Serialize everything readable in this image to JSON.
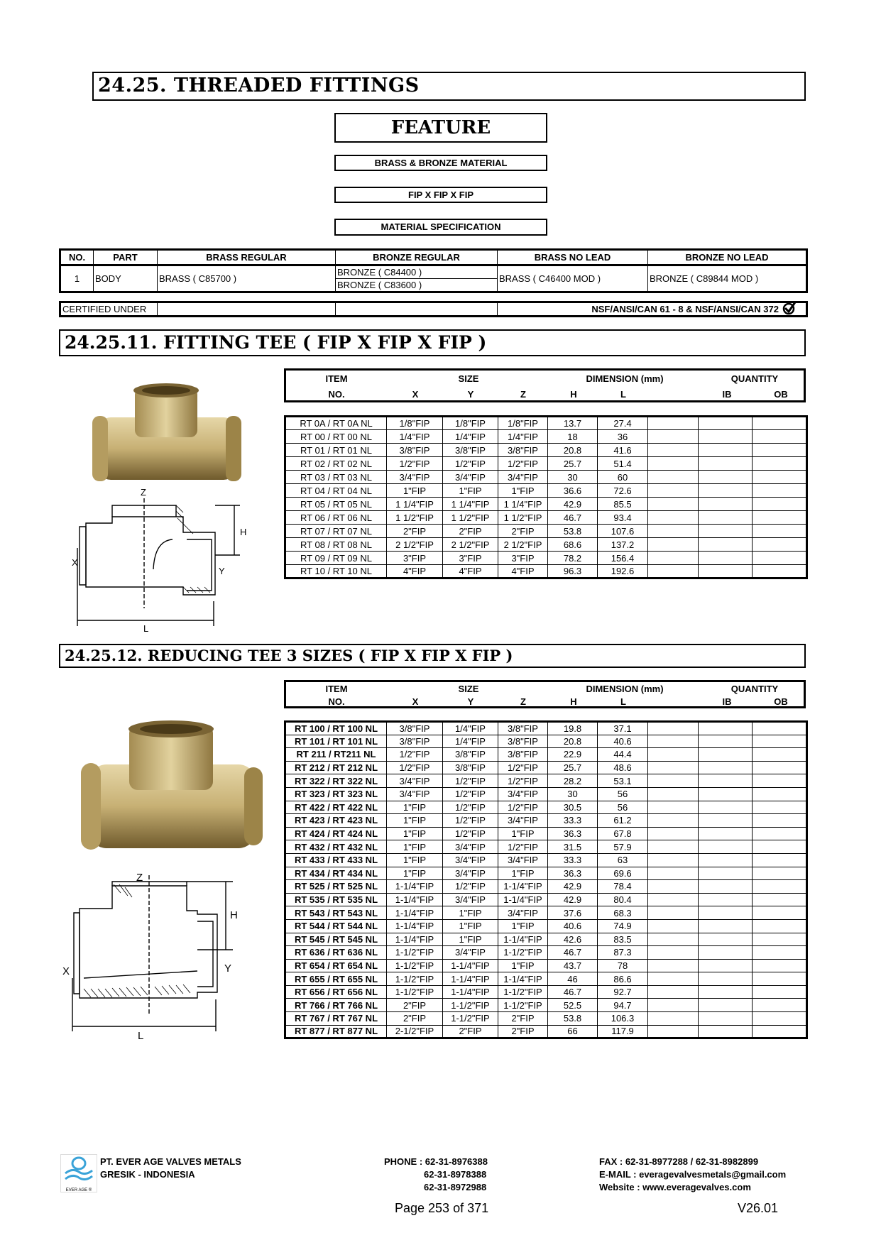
{
  "title": "24.25.  THREADED FITTINGS",
  "feature": {
    "heading": "FEATURE",
    "items": [
      "BRASS & BRONZE MATERIAL",
      "FIP X FIP X FIP",
      "MATERIAL SPECIFICATION"
    ]
  },
  "material_table": {
    "headers": [
      "NO.",
      "PART",
      "BRASS REGULAR",
      "BRONZE REGULAR",
      "BRASS NO LEAD",
      "BRONZE NO LEAD"
    ],
    "row": {
      "no": "1",
      "part": "BODY",
      "brass_regular": "BRASS ( C85700 )",
      "bronze_regular": [
        "BRONZE ( C84400 )",
        "BRONZE ( C83600 )"
      ],
      "brass_no_lead": "BRASS ( C46400 MOD )",
      "bronze_no_lead": "BRONZE ( C89844 MOD )"
    },
    "certified_label": "CERTIFIED UNDER",
    "certified_value": "NSF/ANSI/CAN 61 - 8 & NSF/ANSI/CAN 372",
    "certified_icon": "check-circle-icon"
  },
  "table_header": {
    "item": "ITEM",
    "no": "NO.",
    "size": "SIZE",
    "dimension": "DIMENSION (mm)",
    "quantity": "QUANTITY",
    "x": "X",
    "y": "Y",
    "z": "Z",
    "h": "H",
    "l": "L",
    "ib": "IB",
    "ob": "OB"
  },
  "section1": {
    "title": "24.25.11.  FITTING TEE ( FIP X FIP X FIP )",
    "drawing_labels": {
      "z": "Z",
      "h": "H",
      "x": "X",
      "y": "Y",
      "l": "L"
    },
    "rows": [
      [
        "RT 0A / RT 0A NL",
        "1/8\"FIP",
        "1/8\"FIP",
        "1/8\"FIP",
        "13.7",
        "27.4"
      ],
      [
        "RT 00 / RT 00 NL",
        "1/4\"FIP",
        "1/4\"FIP",
        "1/4\"FIP",
        "18",
        "36"
      ],
      [
        "RT 01 / RT 01 NL",
        "3/8\"FIP",
        "3/8\"FIP",
        "3/8\"FIP",
        "20.8",
        "41.6"
      ],
      [
        "RT 02 / RT 02 NL",
        "1/2\"FIP",
        "1/2\"FIP",
        "1/2\"FIP",
        "25.7",
        "51.4"
      ],
      [
        "RT 03 / RT 03 NL",
        "3/4\"FIP",
        "3/4\"FIP",
        "3/4\"FIP",
        "30",
        "60"
      ],
      [
        "RT 04 / RT 04 NL",
        "1\"FIP",
        "1\"FIP",
        "1\"FIP",
        "36.6",
        "72.6"
      ],
      [
        "RT 05 / RT 05 NL",
        "1 1/4\"FIP",
        "1 1/4\"FIP",
        "1 1/4\"FIP",
        "42.9",
        "85.5"
      ],
      [
        "RT 06 / RT 06 NL",
        "1 1/2\"FIP",
        "1 1/2\"FIP",
        "1 1/2\"FIP",
        "46.7",
        "93.4"
      ],
      [
        "RT 07 / RT 07 NL",
        "2\"FIP",
        "2\"FIP",
        "2\"FIP",
        "53.8",
        "107.6"
      ],
      [
        "RT 08 / RT 08 NL",
        "2 1/2\"FIP",
        "2 1/2\"FIP",
        "2 1/2\"FIP",
        "68.6",
        "137.2"
      ],
      [
        "RT 09 / RT 09 NL",
        "3\"FIP",
        "3\"FIP",
        "3\"FIP",
        "78.2",
        "156.4"
      ],
      [
        "RT 10 / RT 10 NL",
        "4\"FIP",
        "4\"FIP",
        "4\"FIP",
        "96.3",
        "192.6"
      ]
    ]
  },
  "section2": {
    "title": "24.25.12.  REDUCING TEE 3 SIZES ( FIP X FIP X FIP )",
    "drawing_labels": {
      "z": "Z",
      "h": "H",
      "x": "X",
      "y": "Y",
      "l": "L"
    },
    "rows": [
      [
        "RT 100 / RT 100 NL",
        "3/8\"FIP",
        "1/4\"FIP",
        "3/8\"FIP",
        "19.8",
        "37.1"
      ],
      [
        "RT 101 / RT 101 NL",
        "3/8\"FIP",
        "1/4\"FIP",
        "3/8\"FIP",
        "20.8",
        "40.6"
      ],
      [
        "RT 211 / RT211 NL",
        "1/2\"FIP",
        "3/8\"FIP",
        "3/8\"FIP",
        "22.9",
        "44.4"
      ],
      [
        "RT 212 / RT 212 NL",
        "1/2\"FIP",
        "3/8\"FIP",
        "1/2\"FIP",
        "25.7",
        "48.6"
      ],
      [
        "RT 322 / RT 322 NL",
        "3/4\"FIP",
        "1/2\"FIP",
        "1/2\"FIP",
        "28.2",
        "53.1"
      ],
      [
        "RT 323 / RT 323 NL",
        "3/4\"FIP",
        "1/2\"FIP",
        "3/4\"FIP",
        "30",
        "56"
      ],
      [
        "RT 422 / RT 422 NL",
        "1\"FIP",
        "1/2\"FIP",
        "1/2\"FIP",
        "30.5",
        "56"
      ],
      [
        "RT 423 / RT 423 NL",
        "1\"FIP",
        "1/2\"FIP",
        "3/4\"FIP",
        "33.3",
        "61.2"
      ],
      [
        "RT 424 / RT 424 NL",
        "1\"FIP",
        "1/2\"FIP",
        "1\"FIP",
        "36.3",
        "67.8"
      ],
      [
        "RT 432 / RT 432 NL",
        "1\"FIP",
        "3/4\"FIP",
        "1/2\"FIP",
        "31.5",
        "57.9"
      ],
      [
        "RT 433 / RT 433 NL",
        "1\"FIP",
        "3/4\"FIP",
        "3/4\"FIP",
        "33.3",
        "63"
      ],
      [
        "RT 434 / RT 434 NL",
        "1\"FIP",
        "3/4\"FIP",
        "1\"FIP",
        "36.3",
        "69.6"
      ],
      [
        "RT 525 / RT 525 NL",
        "1-1/4\"FIP",
        "1/2\"FIP",
        "1-1/4\"FIP",
        "42.9",
        "78.4"
      ],
      [
        "RT 535 / RT 535 NL",
        "1-1/4\"FIP",
        "3/4\"FIP",
        "1-1/4\"FIP",
        "42.9",
        "80.4"
      ],
      [
        "RT 543 / RT 543 NL",
        "1-1/4\"FIP",
        "1\"FIP",
        "3/4\"FIP",
        "37.6",
        "68.3"
      ],
      [
        "RT 544 / RT 544 NL",
        "1-1/4\"FIP",
        "1\"FIP",
        "1\"FIP",
        "40.6",
        "74.9"
      ],
      [
        "RT 545 / RT 545 NL",
        "1-1/4\"FIP",
        "1\"FIP",
        "1-1/4\"FIP",
        "42.6",
        "83.5"
      ],
      [
        "RT 636 / RT 636 NL",
        "1-1/2\"FIP",
        "3/4\"FIP",
        "1-1/2\"FIP",
        "46.7",
        "87.3"
      ],
      [
        "RT 654 / RT 654 NL",
        "1-1/2\"FIP",
        "1-1/4\"FIP",
        "1\"FIP",
        "43.7",
        "78"
      ],
      [
        "RT 655 / RT 655 NL",
        "1-1/2\"FIP",
        "1-1/4\"FIP",
        "1-1/4\"FIP",
        "46",
        "86.6"
      ],
      [
        "RT 656 / RT 656 NL",
        "1-1/2\"FIP",
        "1-1/4\"FIP",
        "1-1/2\"FIP",
        "46.7",
        "92.7"
      ],
      [
        "RT 766 / RT 766 NL",
        "2\"FIP",
        "1-1/2\"FIP",
        "1-1/2\"FIP",
        "52.5",
        "94.7"
      ],
      [
        "RT 767 / RT 767 NL",
        "2\"FIP",
        "1-1/2\"FIP",
        "2\"FIP",
        "53.8",
        "106.3"
      ],
      [
        "RT 877 / RT 877 NL",
        "2-1/2\"FIP",
        "2\"FIP",
        "2\"FIP",
        "66",
        "117.9"
      ]
    ]
  },
  "footer": {
    "logo_text": "EVER AGE ®",
    "company": "PT. EVER AGE VALVES METALS",
    "location": "GRESIK - INDONESIA",
    "phone_label": "PHONE : 62-31-8976388",
    "phone_2": "62-31-8978388",
    "phone_3": "62-31-8972988",
    "fax": "FAX  : 62-31-8977288 / 62-31-8982899",
    "email": "E-MAIL  : everagevalvesmetals@gmail.com",
    "website": "Website  : www.everagevalves.com",
    "page": "Page 253 of 371",
    "version": "V26.01"
  },
  "colors": {
    "brass_light": "#d8c690",
    "brass_dark": "#8a7440",
    "logo_blue": "#3aa3d8"
  }
}
